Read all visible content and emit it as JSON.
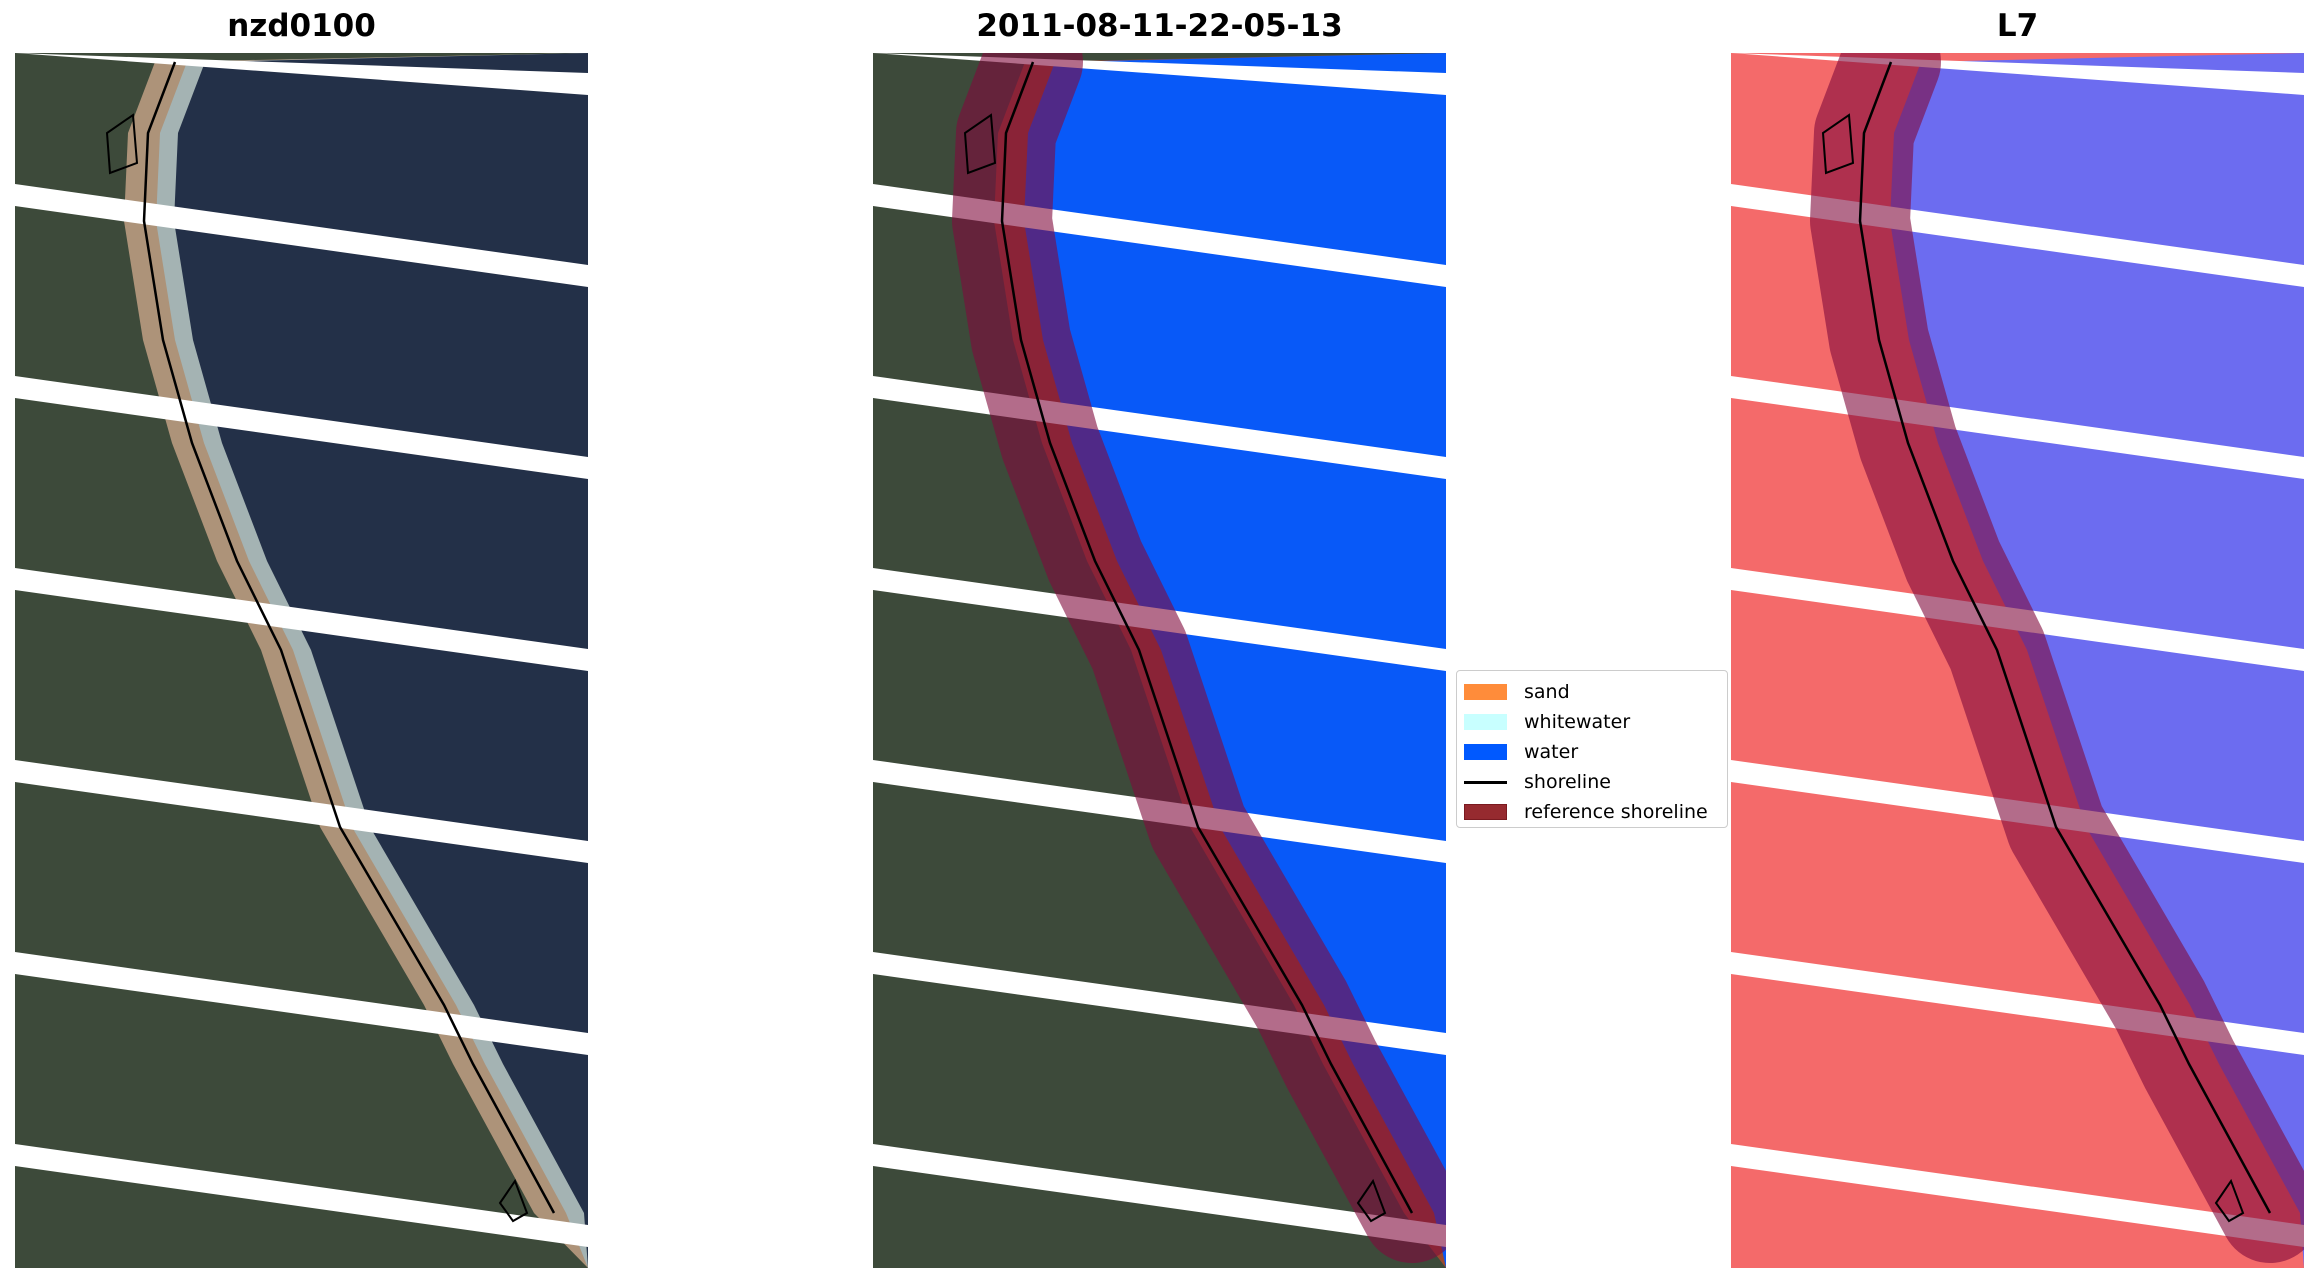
{
  "panels": [
    {
      "title": "nzd0100",
      "kind": "rgb"
    },
    {
      "title": "2011-08-11-22-05-13",
      "kind": "classified"
    },
    {
      "title": "L7",
      "kind": "index"
    }
  ],
  "legend": {
    "items": [
      {
        "label": "sand",
        "color": "#ff8c3a",
        "type": "patch"
      },
      {
        "label": "whitewater",
        "color": "#c8ffff",
        "type": "patch"
      },
      {
        "label": "water",
        "color": "#0059ff",
        "type": "patch"
      },
      {
        "label": "shoreline",
        "color": "#000000",
        "type": "line"
      },
      {
        "label": "reference shoreline",
        "color": "#962a2f",
        "type": "patch"
      }
    ]
  },
  "colors": {
    "land": "#3d4a3a",
    "sea": "#233048",
    "water": "#0859f8",
    "index_land": "#f46a6a",
    "index_water": "#6c6cf0",
    "reference_band": "#800a3c"
  }
}
